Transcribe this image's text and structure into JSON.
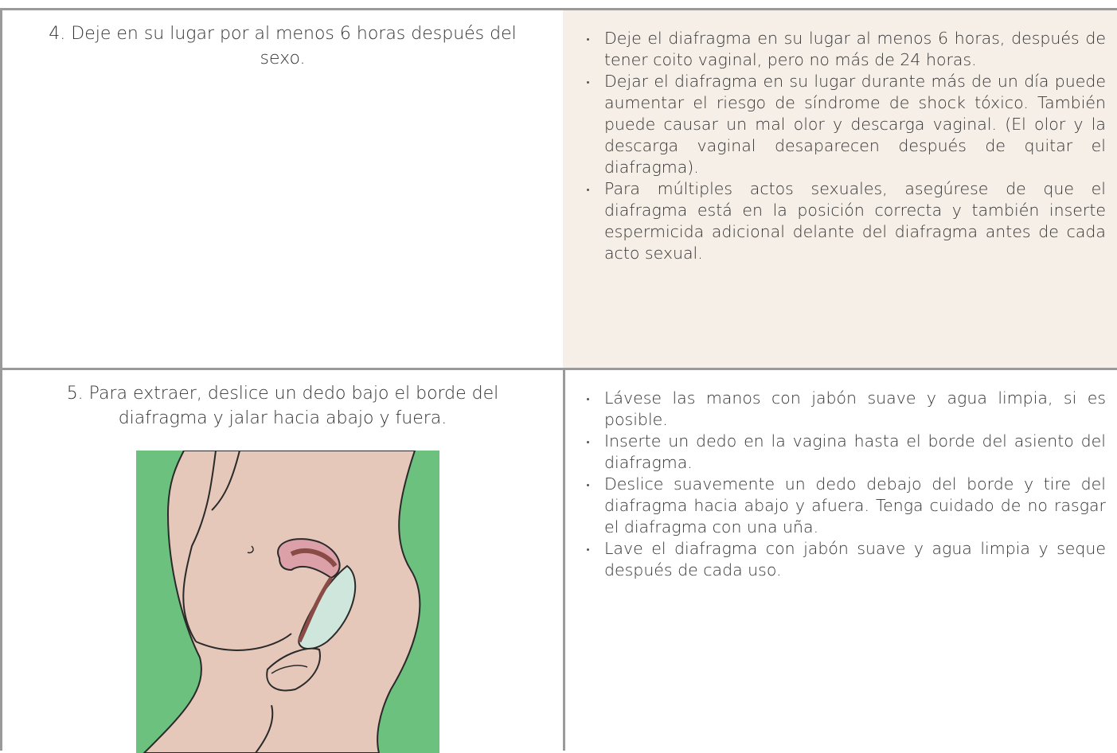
{
  "table": {
    "rows": [
      {
        "step": "4. Deje en su lugar por al menos 6 horas después del sexo.",
        "bullets": [
          "Deje el diafragma en su lugar al menos 6 horas, después de tener coito vaginal, pero no más de 24 horas.",
          "Dejar el diafragma en su lugar durante más de un día puede aumentar el riesgo de síndrome de shock tóxico. También puede causar un mal olor y descarga vaginal. (El olor y la descarga vaginal desaparecen después de quitar el diafragma).",
          "Para múltiples actos sexuales, asegúrese de que el diafragma está en la posición correcta y también inserte espermicida adicional delante del diafragma antes de cada acto sexual."
        ]
      },
      {
        "step": "5. Para extraer, deslice un dedo bajo el borde del diafragma y jalar hacia abajo y fuera.",
        "bullets": [
          "Lávese las manos con jabón suave y agua limpia, si es posible.",
          "Inserte un dedo en la vagina hasta el borde del asiento del diafragma.",
          "Deslice suavemente un dedo debajo del borde y tire del diafragma hacia abajo y afuera. Tenga cuidado de no rasgar el diafragma con una uña.",
          "Lave el diafragma con jabón suave y agua limpia y seque después de cada uso."
        ]
      }
    ]
  }
}
